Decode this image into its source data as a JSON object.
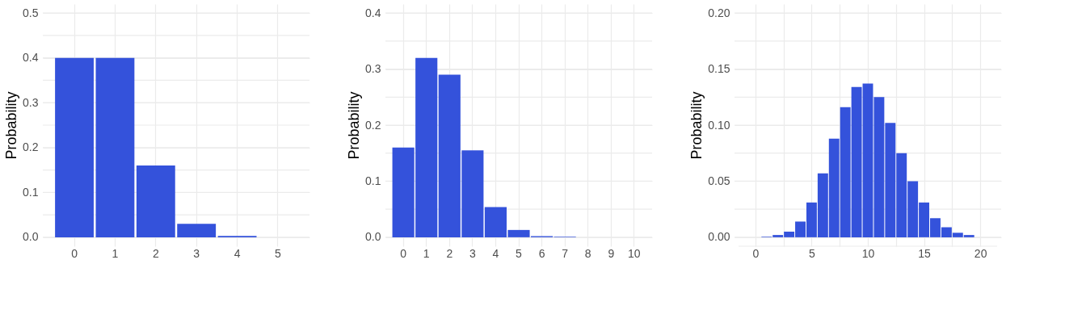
{
  "chart_data": [
    {
      "type": "bar",
      "ylabel": "Probability",
      "categories": [
        "0",
        "1",
        "2",
        "3",
        "4",
        "5"
      ],
      "color": "#3452db",
      "values": [
        0.4,
        0.4,
        0.16,
        0.03,
        0.003,
        0
      ],
      "ylim": [
        -0.02,
        0.52
      ],
      "yticks": [
        {
          "value": 0,
          "label": "0.0"
        },
        {
          "value": 0.05,
          "label": null
        },
        0.1,
        {
          "value": 0.15,
          "label": null
        },
        0.2,
        {
          "value": 0.25,
          "label": null
        },
        0.3,
        {
          "value": 0.35,
          "label": null
        },
        0.4,
        {
          "value": 0.45,
          "label": null
        },
        0.5
      ],
      "grid": true
    },
    {
      "type": "bar",
      "ylabel": "Probability",
      "categories": [
        "0",
        "1",
        "2",
        "3",
        "4",
        "5",
        "6",
        "7",
        "8",
        "9",
        "10"
      ],
      "color": "#3452db",
      "values": [
        0.16,
        0.32,
        0.29,
        0.155,
        0.054,
        0.013,
        0.002,
        0.001,
        0,
        0,
        0
      ],
      "ylim": [
        -0.016,
        0.416
      ],
      "yticks": [
        {
          "value": 0,
          "label": "0.0"
        },
        {
          "value": 0.05,
          "label": null
        },
        0.1,
        {
          "value": 0.15,
          "label": null
        },
        0.2,
        {
          "value": 0.25,
          "label": null
        },
        0.3,
        {
          "value": 0.35,
          "label": null
        },
        0.4
      ],
      "grid": true
    },
    {
      "type": "bar",
      "ylabel": "Probability",
      "color": "#3452db",
      "x": [
        0,
        1,
        2,
        3,
        4,
        5,
        6,
        7,
        8,
        9,
        10,
        11,
        12,
        13,
        14,
        15,
        16,
        17,
        18,
        19,
        20
      ],
      "values": [
        0,
        0.0005,
        0.002,
        0.005,
        0.014,
        0.031,
        0.057,
        0.088,
        0.116,
        0.134,
        0.137,
        0.125,
        0.102,
        0.075,
        0.05,
        0.031,
        0.017,
        0.009,
        0.004,
        0.002,
        0
      ],
      "xlim": [
        -1.5,
        21.5
      ],
      "xticks": [
        0,
        {
          "value": 2.5,
          "label": null
        },
        5,
        {
          "value": 7.5,
          "label": null
        },
        10,
        {
          "value": 12.5,
          "label": null
        },
        15,
        {
          "value": 17.5,
          "label": null
        },
        20
      ],
      "ylim": [
        -0.008,
        0.208
      ],
      "yticks": [
        {
          "value": 0,
          "label": "0.00"
        },
        {
          "value": 0.025,
          "label": null
        },
        0.05,
        {
          "value": 0.075,
          "label": null
        },
        {
          "value": 0.1,
          "label": "0.10"
        },
        {
          "value": 0.125,
          "label": null
        },
        0.15,
        {
          "value": 0.175,
          "label": null
        },
        {
          "value": 0.2,
          "label": "0.20"
        }
      ],
      "grid": true
    }
  ]
}
